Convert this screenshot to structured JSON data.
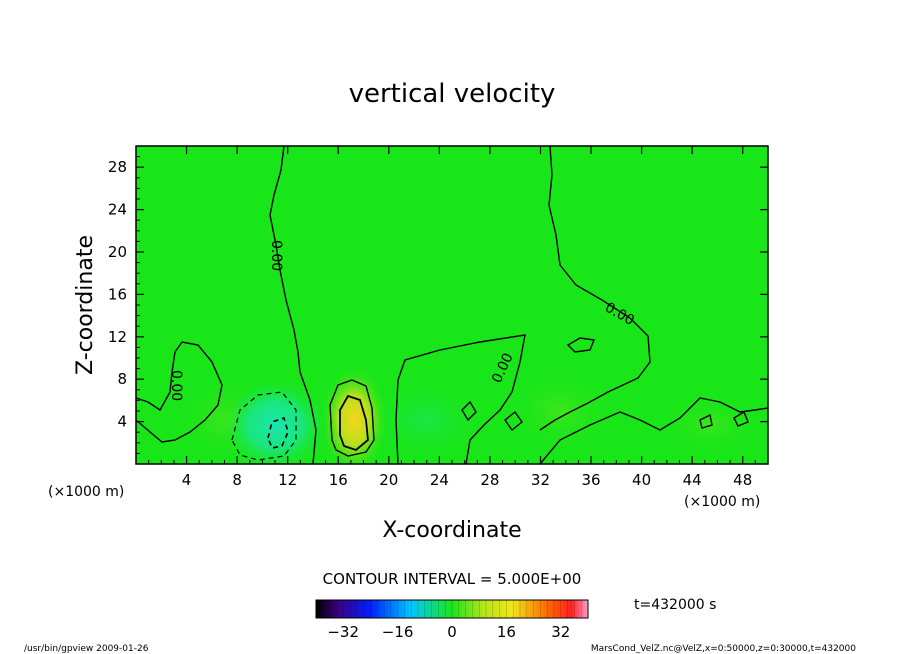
{
  "chart_data": {
    "type": "heatmap",
    "title": "vertical velocity",
    "xlabel": "X-coordinate",
    "ylabel": "Z-coordinate",
    "x_unit": "(×1000 m)",
    "y_unit": "(×1000 m)",
    "xlim": [
      0,
      50
    ],
    "ylim": [
      0,
      30
    ],
    "x_ticks": [
      4,
      8,
      12,
      16,
      20,
      24,
      28,
      32,
      36,
      40,
      44,
      48
    ],
    "y_ticks": [
      4,
      8,
      12,
      16,
      20,
      24,
      28
    ],
    "contour_interval": "CONTOUR INTERVAL = 5.000E+00",
    "contour_labels": [
      "0.00",
      "0.00",
      "0.00",
      "0.00"
    ],
    "time_label": "t=432000 s",
    "colorbar": {
      "range": [
        -40,
        40
      ],
      "ticks": [
        -32,
        -16,
        0,
        16,
        32
      ]
    },
    "features": [
      {
        "kind": "updraft",
        "x": 17.5,
        "z": 3.2,
        "peak": 20
      },
      {
        "kind": "downdraft",
        "x": 11.0,
        "z": 3.5,
        "peak": -12
      }
    ]
  },
  "footer": {
    "left": "/usr/bin/gpview  2009-01-26",
    "right": "MarsCond_VelZ.nc@VelZ,x=0:50000,z=0:30000,t=432000"
  },
  "colors": {
    "background_field": "#19e619",
    "contour_line": "#000000"
  }
}
